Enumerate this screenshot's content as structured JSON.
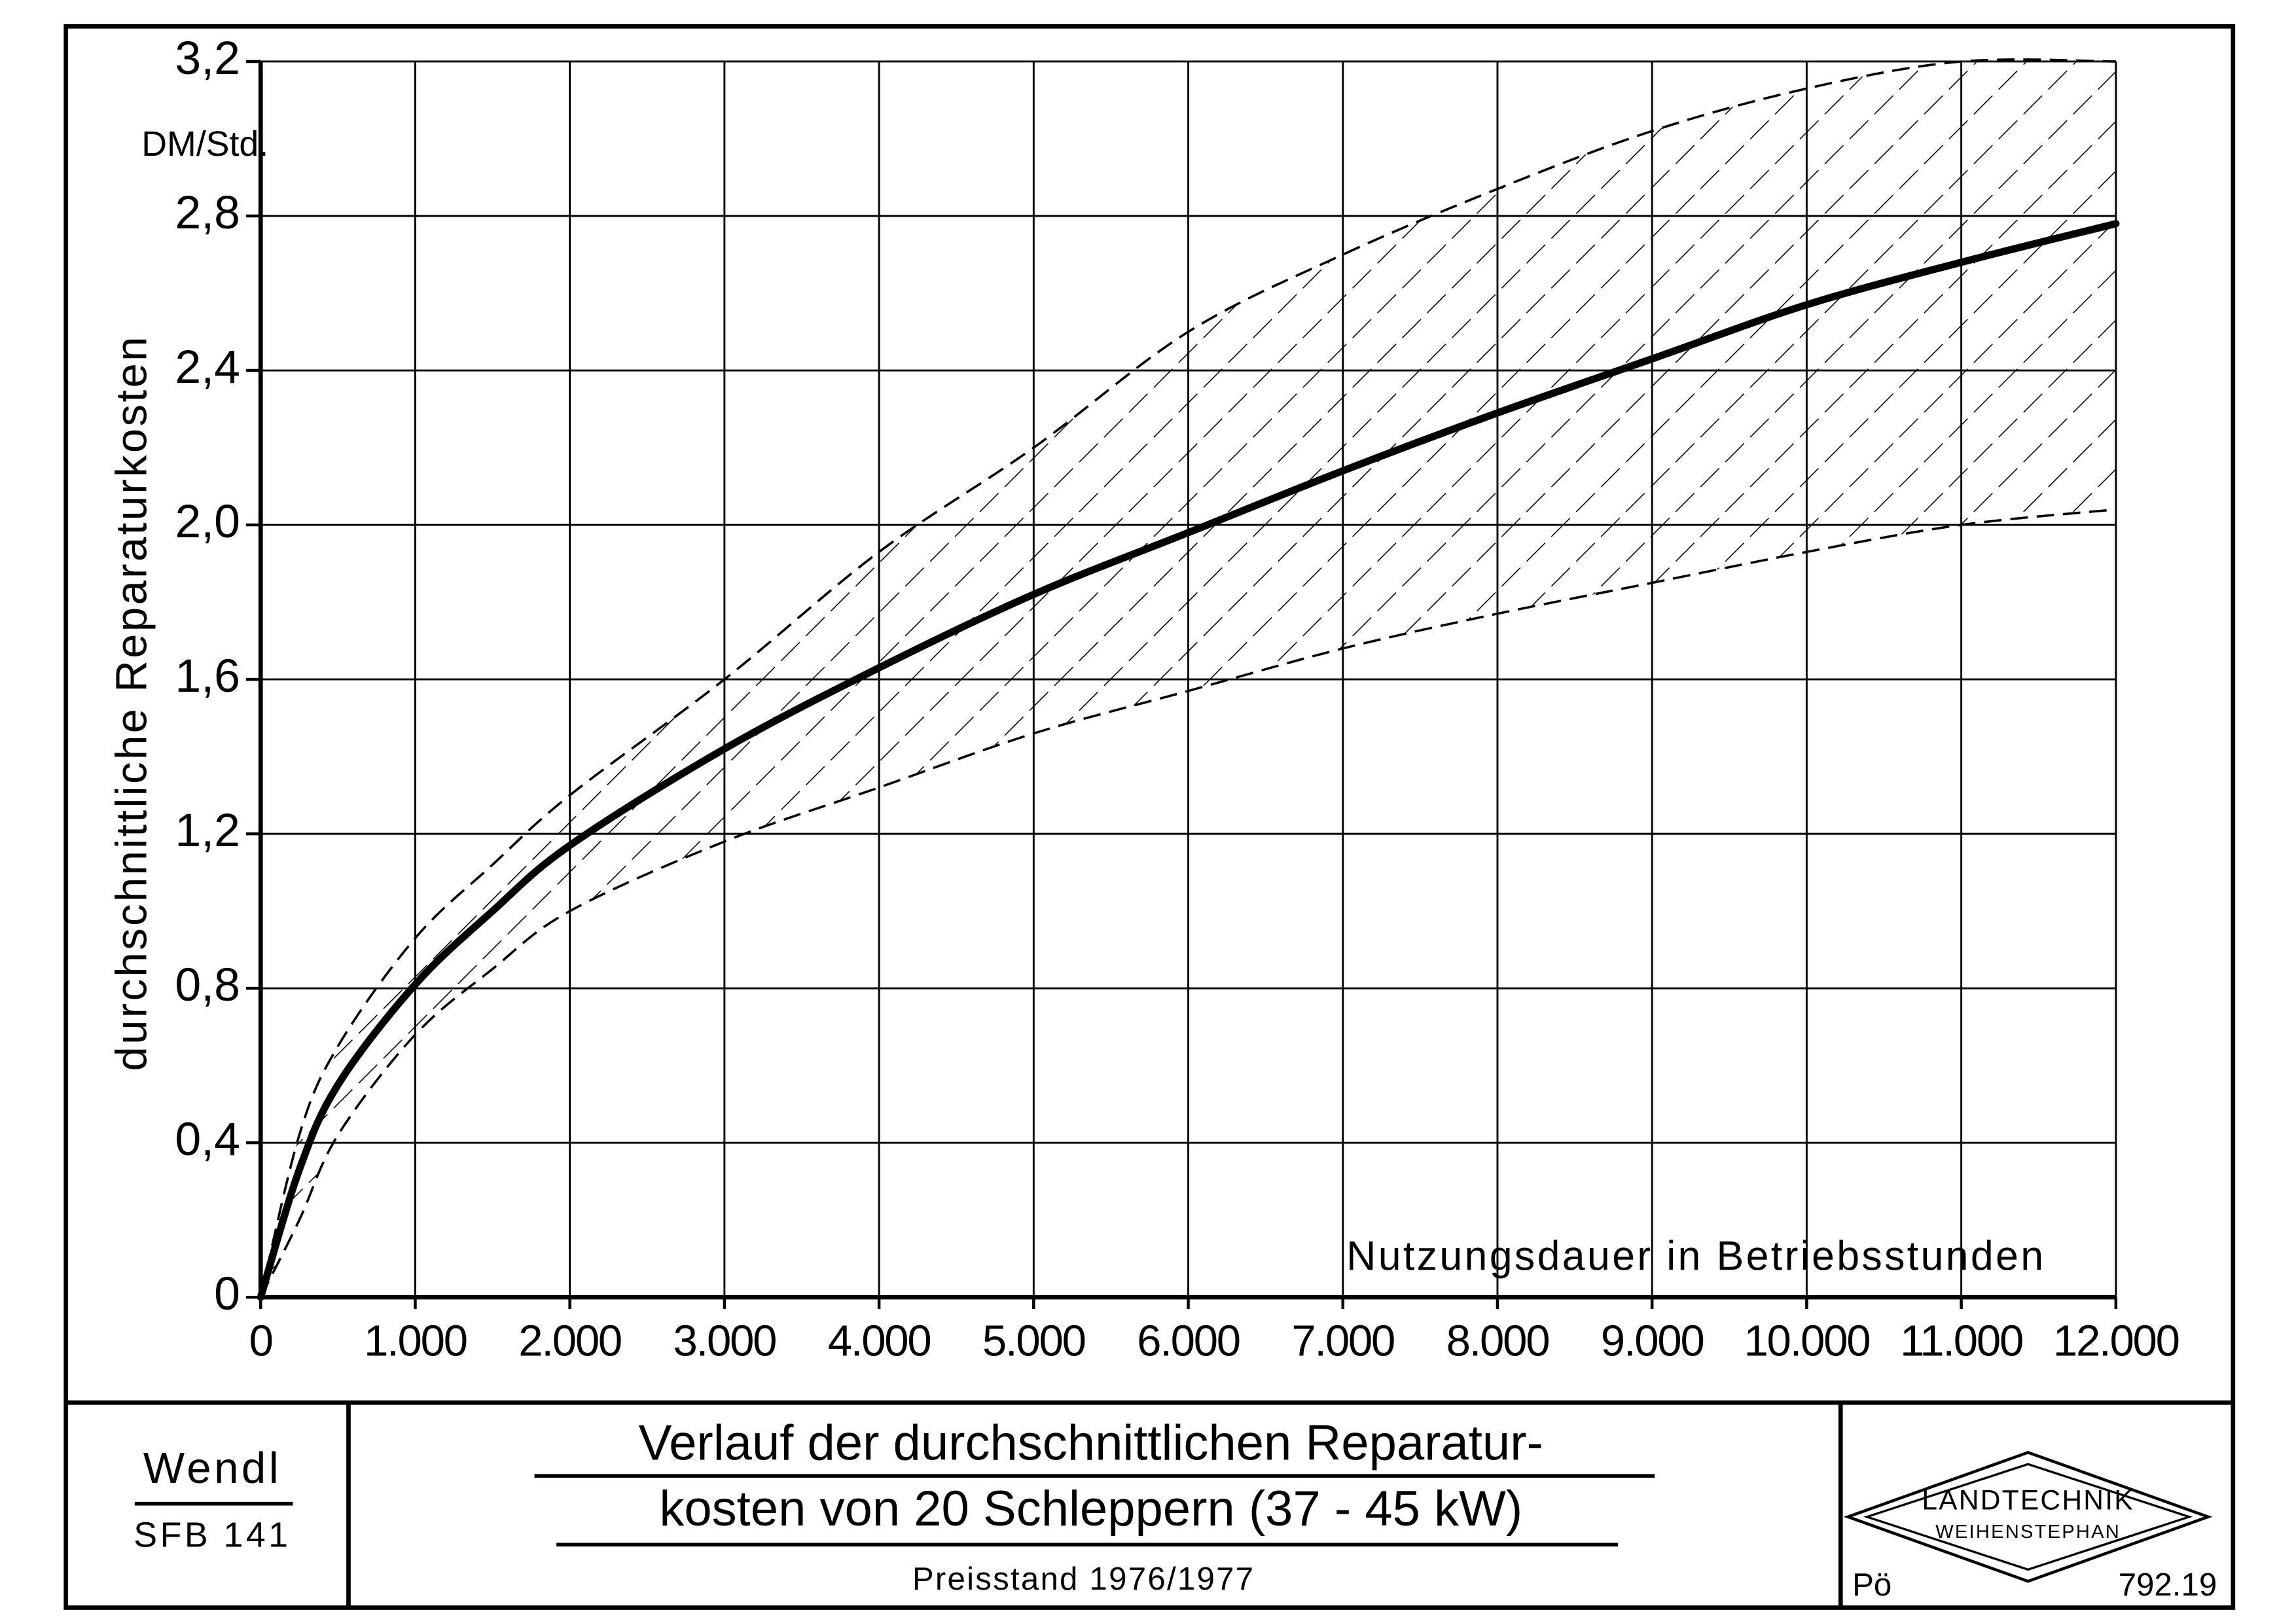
{
  "chart_data": {
    "type": "line",
    "title": [
      "Verlauf der durchschnittlichen Reparatur-",
      "kosten von 20 Schleppern (37 - 45 kW)"
    ],
    "subtitle": "Preisstand 1976/1977",
    "ylabel": "durchschnittliche Reparaturkosten",
    "yunit": "DM/Std.",
    "xlabel": "Nutzungsdauer in Betriebsstunden",
    "x": [
      0,
      250,
      500,
      1000,
      1500,
      2000,
      3000,
      4000,
      5000,
      6000,
      7000,
      8000,
      9000,
      10000,
      11000,
      12000
    ],
    "series": [
      {
        "color": "#000000",
        "values": [
          0,
          0.33,
          0.55,
          0.81,
          1.0,
          1.17,
          1.42,
          1.63,
          1.82,
          1.98,
          2.14,
          2.29,
          2.43,
          2.57,
          2.68,
          2.78
        ]
      }
    ],
    "band": {
      "lower": [
        0,
        0.2,
        0.42,
        0.68,
        0.85,
        1.0,
        1.18,
        1.32,
        1.46,
        1.57,
        1.68,
        1.77,
        1.85,
        1.93,
        2.0,
        2.04
      ],
      "upper": [
        0,
        0.42,
        0.65,
        0.93,
        1.12,
        1.3,
        1.6,
        1.93,
        2.2,
        2.5,
        2.7,
        2.87,
        3.02,
        3.13,
        3.2,
        3.2
      ]
    },
    "xlim": [
      0,
      12000
    ],
    "ylim": [
      0,
      3.2
    ],
    "xticks": [
      0,
      {
        "value": 1000,
        "label": "1.000"
      },
      {
        "value": 2000,
        "label": "2.000"
      },
      {
        "value": 3000,
        "label": "3.000"
      },
      {
        "value": 4000,
        "label": "4.000"
      },
      {
        "value": 5000,
        "label": "5.000"
      },
      {
        "value": 6000,
        "label": "6.000"
      },
      {
        "value": 7000,
        "label": "7.000"
      },
      {
        "value": 8000,
        "label": "8.000"
      },
      {
        "value": 9000,
        "label": "9.000"
      },
      {
        "value": 10000,
        "label": "10.000"
      },
      {
        "value": 11000,
        "label": "11.000"
      },
      {
        "value": 12000,
        "label": "12.000"
      }
    ],
    "yticks": [
      0,
      {
        "value": 0.4,
        "label": "0,4"
      },
      {
        "value": 0.8,
        "label": "0,8"
      },
      {
        "value": 1.2,
        "label": "1,2"
      },
      {
        "value": 1.6,
        "label": "1,6"
      },
      {
        "value": 2.0,
        "label": "2,0"
      },
      {
        "value": 2.4,
        "label": "2,4"
      },
      {
        "value": 2.8,
        "label": "2,8"
      },
      {
        "value": 3.2,
        "label": "3,2"
      }
    ],
    "grid": true
  },
  "footer": {
    "author": "Wendl",
    "project": "SFB 141",
    "institute": [
      "LANDTECHNIK",
      "WEIHENSTEPHAN"
    ],
    "initials": "Pö",
    "number": "792.19"
  }
}
